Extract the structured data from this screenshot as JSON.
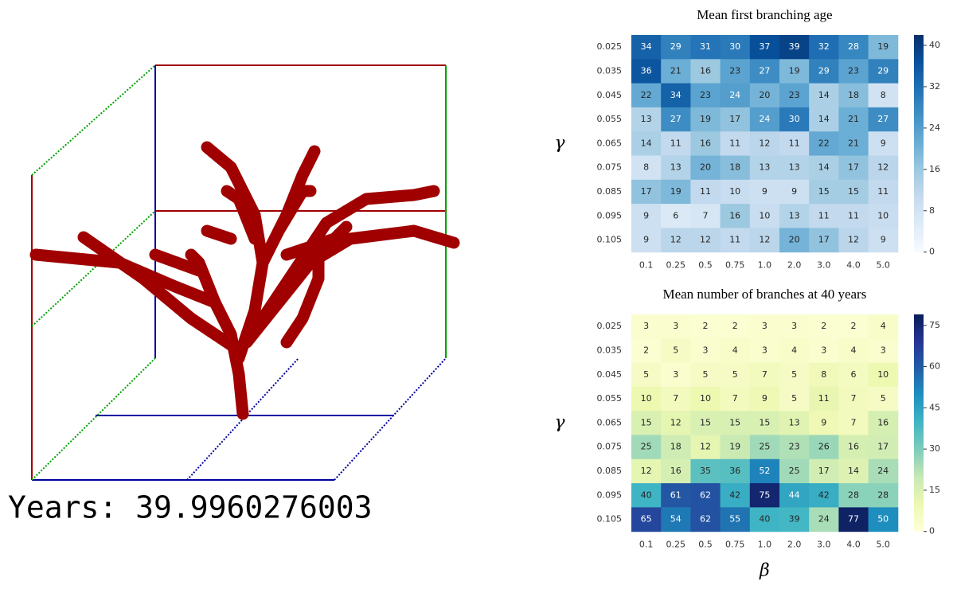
{
  "simulation": {
    "label": "Years: 39.9960276003"
  },
  "chart_data": [
    {
      "type": "heatmap",
      "title": "Mean first branching age",
      "ylabel": "γ",
      "x_categories": [
        "0.1",
        "0.25",
        "0.5",
        "0.75",
        "1.0",
        "2.0",
        "3.0",
        "4.0",
        "5.0"
      ],
      "y_categories": [
        "0.025",
        "0.035",
        "0.045",
        "0.055",
        "0.065",
        "0.075",
        "0.085",
        "0.095",
        "0.105"
      ],
      "values": [
        [
          34,
          29,
          31,
          30,
          37,
          39,
          32,
          28,
          19
        ],
        [
          36,
          21,
          16,
          23,
          27,
          19,
          29,
          23,
          29
        ],
        [
          22,
          34,
          23,
          24,
          20,
          23,
          14,
          18,
          8
        ],
        [
          13,
          27,
          19,
          17,
          24,
          30,
          14,
          21,
          27
        ],
        [
          14,
          11,
          16,
          11,
          12,
          11,
          22,
          21,
          9
        ],
        [
          8,
          13,
          20,
          18,
          13,
          13,
          14,
          17,
          12
        ],
        [
          17,
          19,
          11,
          10,
          9,
          9,
          15,
          15,
          11
        ],
        [
          9,
          6,
          7,
          16,
          10,
          13,
          11,
          11,
          10
        ],
        [
          9,
          12,
          12,
          11,
          12,
          20,
          17,
          12,
          9
        ]
      ],
      "colorbar_lim": [
        0,
        42
      ],
      "colorbar_ticks": [
        0,
        8,
        16,
        24,
        32,
        40
      ],
      "colormap": [
        "#f7fbff",
        "#deebf7",
        "#c6dbef",
        "#9ecae1",
        "#6baed6",
        "#4292c6",
        "#2171b5",
        "#08519c",
        "#08306b"
      ]
    },
    {
      "type": "heatmap",
      "title": "Mean number of branches at 40 years",
      "ylabel": "γ",
      "xlabel": "β",
      "x_categories": [
        "0.1",
        "0.25",
        "0.5",
        "0.75",
        "1.0",
        "2.0",
        "3.0",
        "4.0",
        "5.0"
      ],
      "y_categories": [
        "0.025",
        "0.035",
        "0.045",
        "0.055",
        "0.065",
        "0.075",
        "0.085",
        "0.095",
        "0.105"
      ],
      "values": [
        [
          3,
          3,
          2,
          2,
          3,
          3,
          2,
          2,
          4
        ],
        [
          2,
          5,
          3,
          4,
          3,
          4,
          3,
          4,
          3
        ],
        [
          5,
          3,
          5,
          5,
          7,
          5,
          8,
          6,
          10
        ],
        [
          10,
          7,
          10,
          7,
          9,
          5,
          11,
          7,
          5
        ],
        [
          15,
          12,
          15,
          15,
          15,
          13,
          9,
          7,
          16
        ],
        [
          25,
          18,
          12,
          19,
          25,
          23,
          26,
          16,
          17
        ],
        [
          12,
          16,
          35,
          36,
          52,
          25,
          17,
          14,
          24
        ],
        [
          40,
          61,
          62,
          42,
          75,
          44,
          42,
          28,
          28
        ],
        [
          65,
          54,
          62,
          55,
          40,
          39,
          24,
          77,
          50
        ]
      ],
      "colorbar_lim": [
        0,
        79
      ],
      "colorbar_ticks": [
        0,
        15,
        30,
        45,
        60,
        75
      ],
      "colormap": [
        "#ffffd9",
        "#edf8b1",
        "#c7e9b4",
        "#7fcdbb",
        "#41b6c4",
        "#1d91c0",
        "#225ea8",
        "#253494",
        "#081d58"
      ]
    }
  ]
}
